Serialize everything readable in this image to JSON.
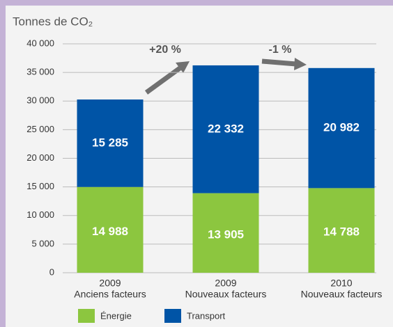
{
  "chart_data": {
    "type": "stacked_bar",
    "title": "Tonnes de CO₂",
    "categories": [
      [
        "2009",
        "Anciens facteurs"
      ],
      [
        "2009",
        "Nouveaux facteurs"
      ],
      [
        "2010",
        "Nouveaux facteurs"
      ]
    ],
    "series": [
      {
        "name": "Énergie",
        "color": "#8cc63f",
        "values": [
          14988,
          13905,
          14788
        ],
        "value_labels": [
          "14 988",
          "13 905",
          "14 788"
        ]
      },
      {
        "name": "Transport",
        "color": "#0054a6",
        "values": [
          15285,
          22332,
          20982
        ],
        "value_labels": [
          "15 285",
          "22 332",
          "20 982"
        ]
      }
    ],
    "ylim": [
      0,
      40000
    ],
    "yticks": [
      0,
      {
        "value": 5000,
        "label": "5 000"
      },
      {
        "value": 10000,
        "label": "10 000"
      },
      {
        "value": 15000,
        "label": "15 000"
      },
      {
        "value": 20000,
        "label": "20 000"
      },
      {
        "value": 25000,
        "label": "25 000"
      },
      {
        "value": 30000,
        "label": "30 000"
      },
      {
        "value": 35000,
        "label": "35 000"
      },
      {
        "value": 40000,
        "label": "40 000"
      }
    ],
    "grid": true,
    "annotations": [
      "+20 %",
      "-1 %"
    ]
  }
}
